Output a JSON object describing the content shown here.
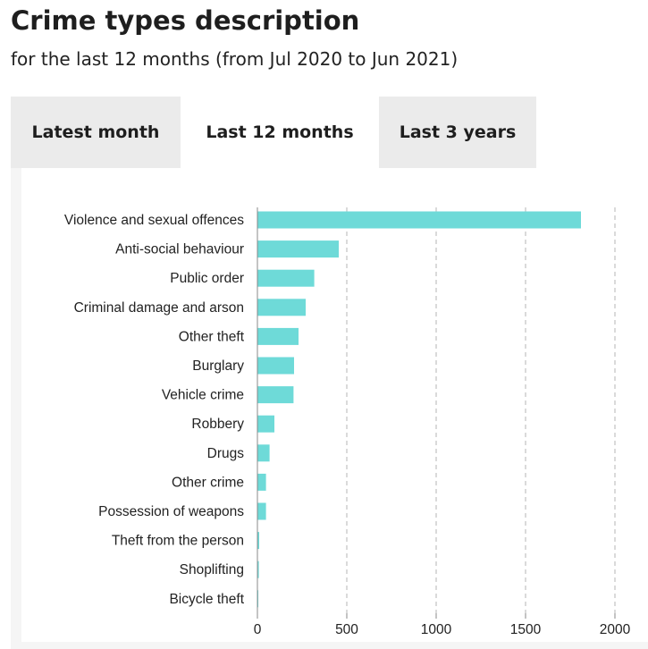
{
  "header": {
    "title": "Crime types description",
    "subtitle": "for the last 12 months (from Jul 2020 to Jun 2021)"
  },
  "tabs": [
    {
      "label": "Latest month",
      "active": false
    },
    {
      "label": "Last 12 months",
      "active": true
    },
    {
      "label": "Last 3 years",
      "active": false
    }
  ],
  "colors": {
    "bar": "#6edad8",
    "tab_inactive": "#ebebeb",
    "grid": "#b5b5b5"
  },
  "chart_data": {
    "type": "bar",
    "orientation": "horizontal",
    "categories": [
      "Violence and sexual offences",
      "Anti-social behaviour",
      "Public order",
      "Criminal damage and arson",
      "Other theft",
      "Burglary",
      "Vehicle crime",
      "Robbery",
      "Drugs",
      "Other crime",
      "Possession of weapons",
      "Theft from the person",
      "Shoplifting",
      "Bicycle theft"
    ],
    "values": [
      1810,
      455,
      318,
      270,
      230,
      205,
      202,
      95,
      68,
      48,
      48,
      10,
      8,
      4
    ],
    "xlim": [
      0,
      2000
    ],
    "xticks": [
      0,
      500,
      1000,
      1500,
      2000
    ],
    "grid": "vertical dashed",
    "legend": "none"
  }
}
